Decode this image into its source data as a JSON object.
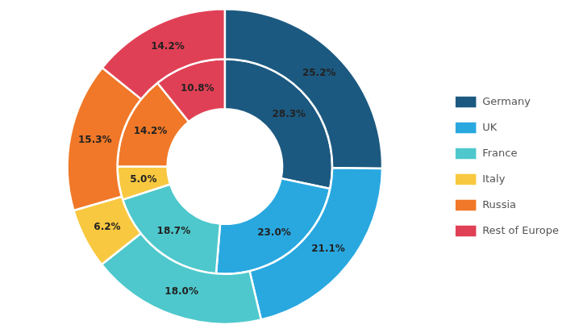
{
  "chart_data": {
    "type": "doughnut",
    "categories": [
      "Germany",
      "UK",
      "France",
      "Italy",
      "Russia",
      "Rest of Europe"
    ],
    "series": [
      {
        "values": [
          25.2,
          21.1,
          18.0,
          6.2,
          15.3,
          14.2
        ],
        "value_labels": [
          "25.2%",
          "21.1%",
          "18.0%",
          "6.2%",
          "15.3%",
          "14.2%"
        ],
        "colors": [
          "#1c5980",
          "#29a8e0",
          "#4ec8cc",
          "#f8c840",
          "#f07828",
          "#e04055"
        ]
      },
      {
        "values": [
          28.3,
          23.0,
          18.7,
          5.0,
          14.2,
          10.8
        ],
        "value_labels": [
          "28.3%",
          "23.0%",
          "18.7%",
          "5.0%",
          "14.2%",
          "10.8%"
        ],
        "colors": [
          "#1c5980",
          "#29a8e0",
          "#4ec8cc",
          "#f8c840",
          "#f07828",
          "#e04055"
        ]
      }
    ],
    "legend": "right",
    "data_labels": true
  }
}
